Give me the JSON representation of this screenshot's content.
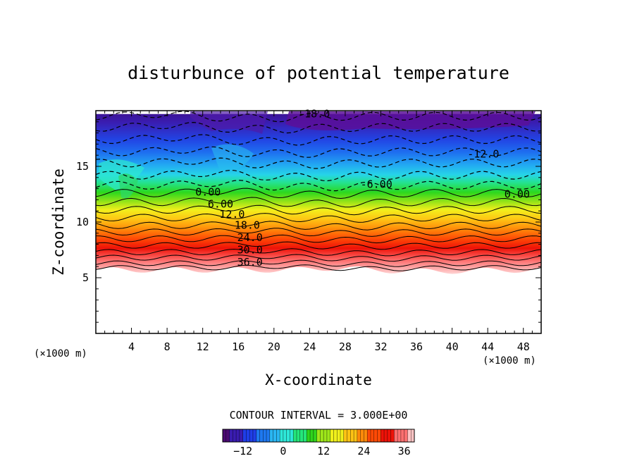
{
  "chart_data": {
    "type": "contour",
    "title": "disturbunce of potential temperature",
    "xlabel": "X-coordinate",
    "ylabel": "Z-coordinate",
    "x_unit": "(×1000 m)",
    "z_unit": "(×1000 m)",
    "xlim": [
      0,
      50
    ],
    "ylim": [
      0,
      20
    ],
    "x_ticks": [
      4,
      8,
      12,
      16,
      20,
      24,
      28,
      32,
      36,
      40,
      44,
      48
    ],
    "y_ticks": [
      5,
      10,
      15
    ],
    "contour_interval_text": "CONTOUR INTERVAL =  3.000E+00",
    "contour_interval": 3.0,
    "colorbar": {
      "range": [
        -18,
        39
      ],
      "ticks": [
        -12,
        0,
        12,
        24,
        36
      ],
      "colors": [
        "#4b0a73",
        "#3a1cb0",
        "#1f3ee8",
        "#1e78f0",
        "#2ab6f2",
        "#2ee8d8",
        "#24e67a",
        "#2ed41c",
        "#9ee61a",
        "#f0f01c",
        "#ffc314",
        "#ff8a0a",
        "#ff4a06",
        "#ee1208",
        "#ff7070",
        "#ffc4c4"
      ]
    },
    "contour_labels": [
      {
        "text": "-18.0",
        "x": 24.5,
        "z": 19.7
      },
      {
        "text": "-12.0",
        "x": 43.5,
        "z": 16.1
      },
      {
        "text": "-6.00",
        "x": 31.5,
        "z": 13.4
      },
      {
        "text": "0.00",
        "x": 12.6,
        "z": 12.7
      },
      {
        "text": "0.00",
        "x": 47.3,
        "z": 12.5
      },
      {
        "text": "6.00",
        "x": 14.0,
        "z": 11.6
      },
      {
        "text": "12.0",
        "x": 15.3,
        "z": 10.7
      },
      {
        "text": "18.0",
        "x": 17.0,
        "z": 9.7
      },
      {
        "text": "24.0",
        "x": 17.3,
        "z": 8.6
      },
      {
        "text": "30.0",
        "x": 17.3,
        "z": 7.5
      },
      {
        "text": "36.0",
        "x": 17.3,
        "z": 6.4
      }
    ],
    "solid_contour_levels_z": [
      5.9,
      6.3,
      6.8,
      7.3,
      7.9,
      8.5,
      9.1,
      9.7,
      10.4,
      11.1,
      11.8,
      12.6
    ],
    "dashed_contour_levels_z": [
      13.3,
      14.2,
      15.3,
      16.3,
      17.4,
      18.5,
      19.5
    ],
    "filled_top_z": 19.7,
    "filled_bottom_z": 5.7
  }
}
